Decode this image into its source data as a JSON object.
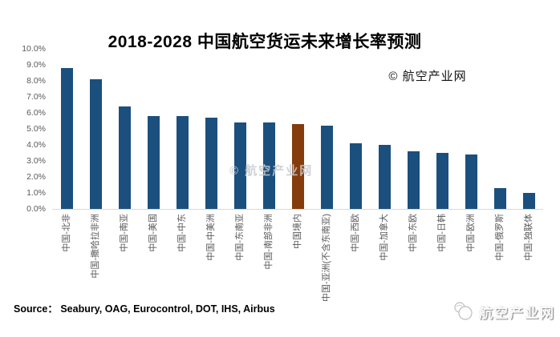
{
  "title": "2018-2028 中国航空货运未来增长率预测",
  "copyright_note": "© 航空产业网",
  "watermark": {
    "center": "© 航空产业网"
  },
  "source_note": "Source：  Seabury, OAG, Eurocontrol, DOT, IHS, Airbus",
  "footer": {
    "logo_text": "航空产业网",
    "logo_icon": "overlapping-circles-logo"
  },
  "colors": {
    "bar_default": "#1B4F7E",
    "bar_highlight": "#843C0C",
    "axis_line": "#D9D9D9",
    "tick_label": "#595959",
    "watermark_gray": "#C6CACF"
  },
  "chart_data": {
    "type": "bar",
    "title": "2018-2028 中国航空货运未来增长率预测",
    "xlabel": "",
    "ylabel": "",
    "categories": [
      "中国-北非",
      "中国-撒哈拉非洲",
      "中国-南亚",
      "中国-美国",
      "中国-中东",
      "中国-中美洲",
      "中国-东南亚",
      "中国-南部非洲",
      "中国境内",
      "中国-亚洲(不含东南亚)",
      "中国-西欧",
      "中国-加拿大",
      "中国-东欧",
      "中国-日韩",
      "中国-欧洲",
      "中国-俄罗斯",
      "中国-独联体"
    ],
    "values": [
      8.8,
      8.1,
      6.4,
      5.8,
      5.8,
      5.7,
      5.4,
      5.4,
      5.3,
      5.2,
      4.1,
      4.0,
      3.6,
      3.5,
      3.4,
      1.3,
      1.0
    ],
    "unit": "%",
    "highlight_index": 8,
    "ylim": [
      0,
      10
    ],
    "ytick_step": 1,
    "ytick_labels": [
      "0.0%",
      "1.0%",
      "2.0%",
      "3.0%",
      "4.0%",
      "5.0%",
      "6.0%",
      "7.0%",
      "8.0%",
      "9.0%",
      "10.0%"
    ],
    "grid": false,
    "legend": null,
    "source": "Seabury, OAG, Eurocontrol, DOT, IHS, Airbus"
  }
}
